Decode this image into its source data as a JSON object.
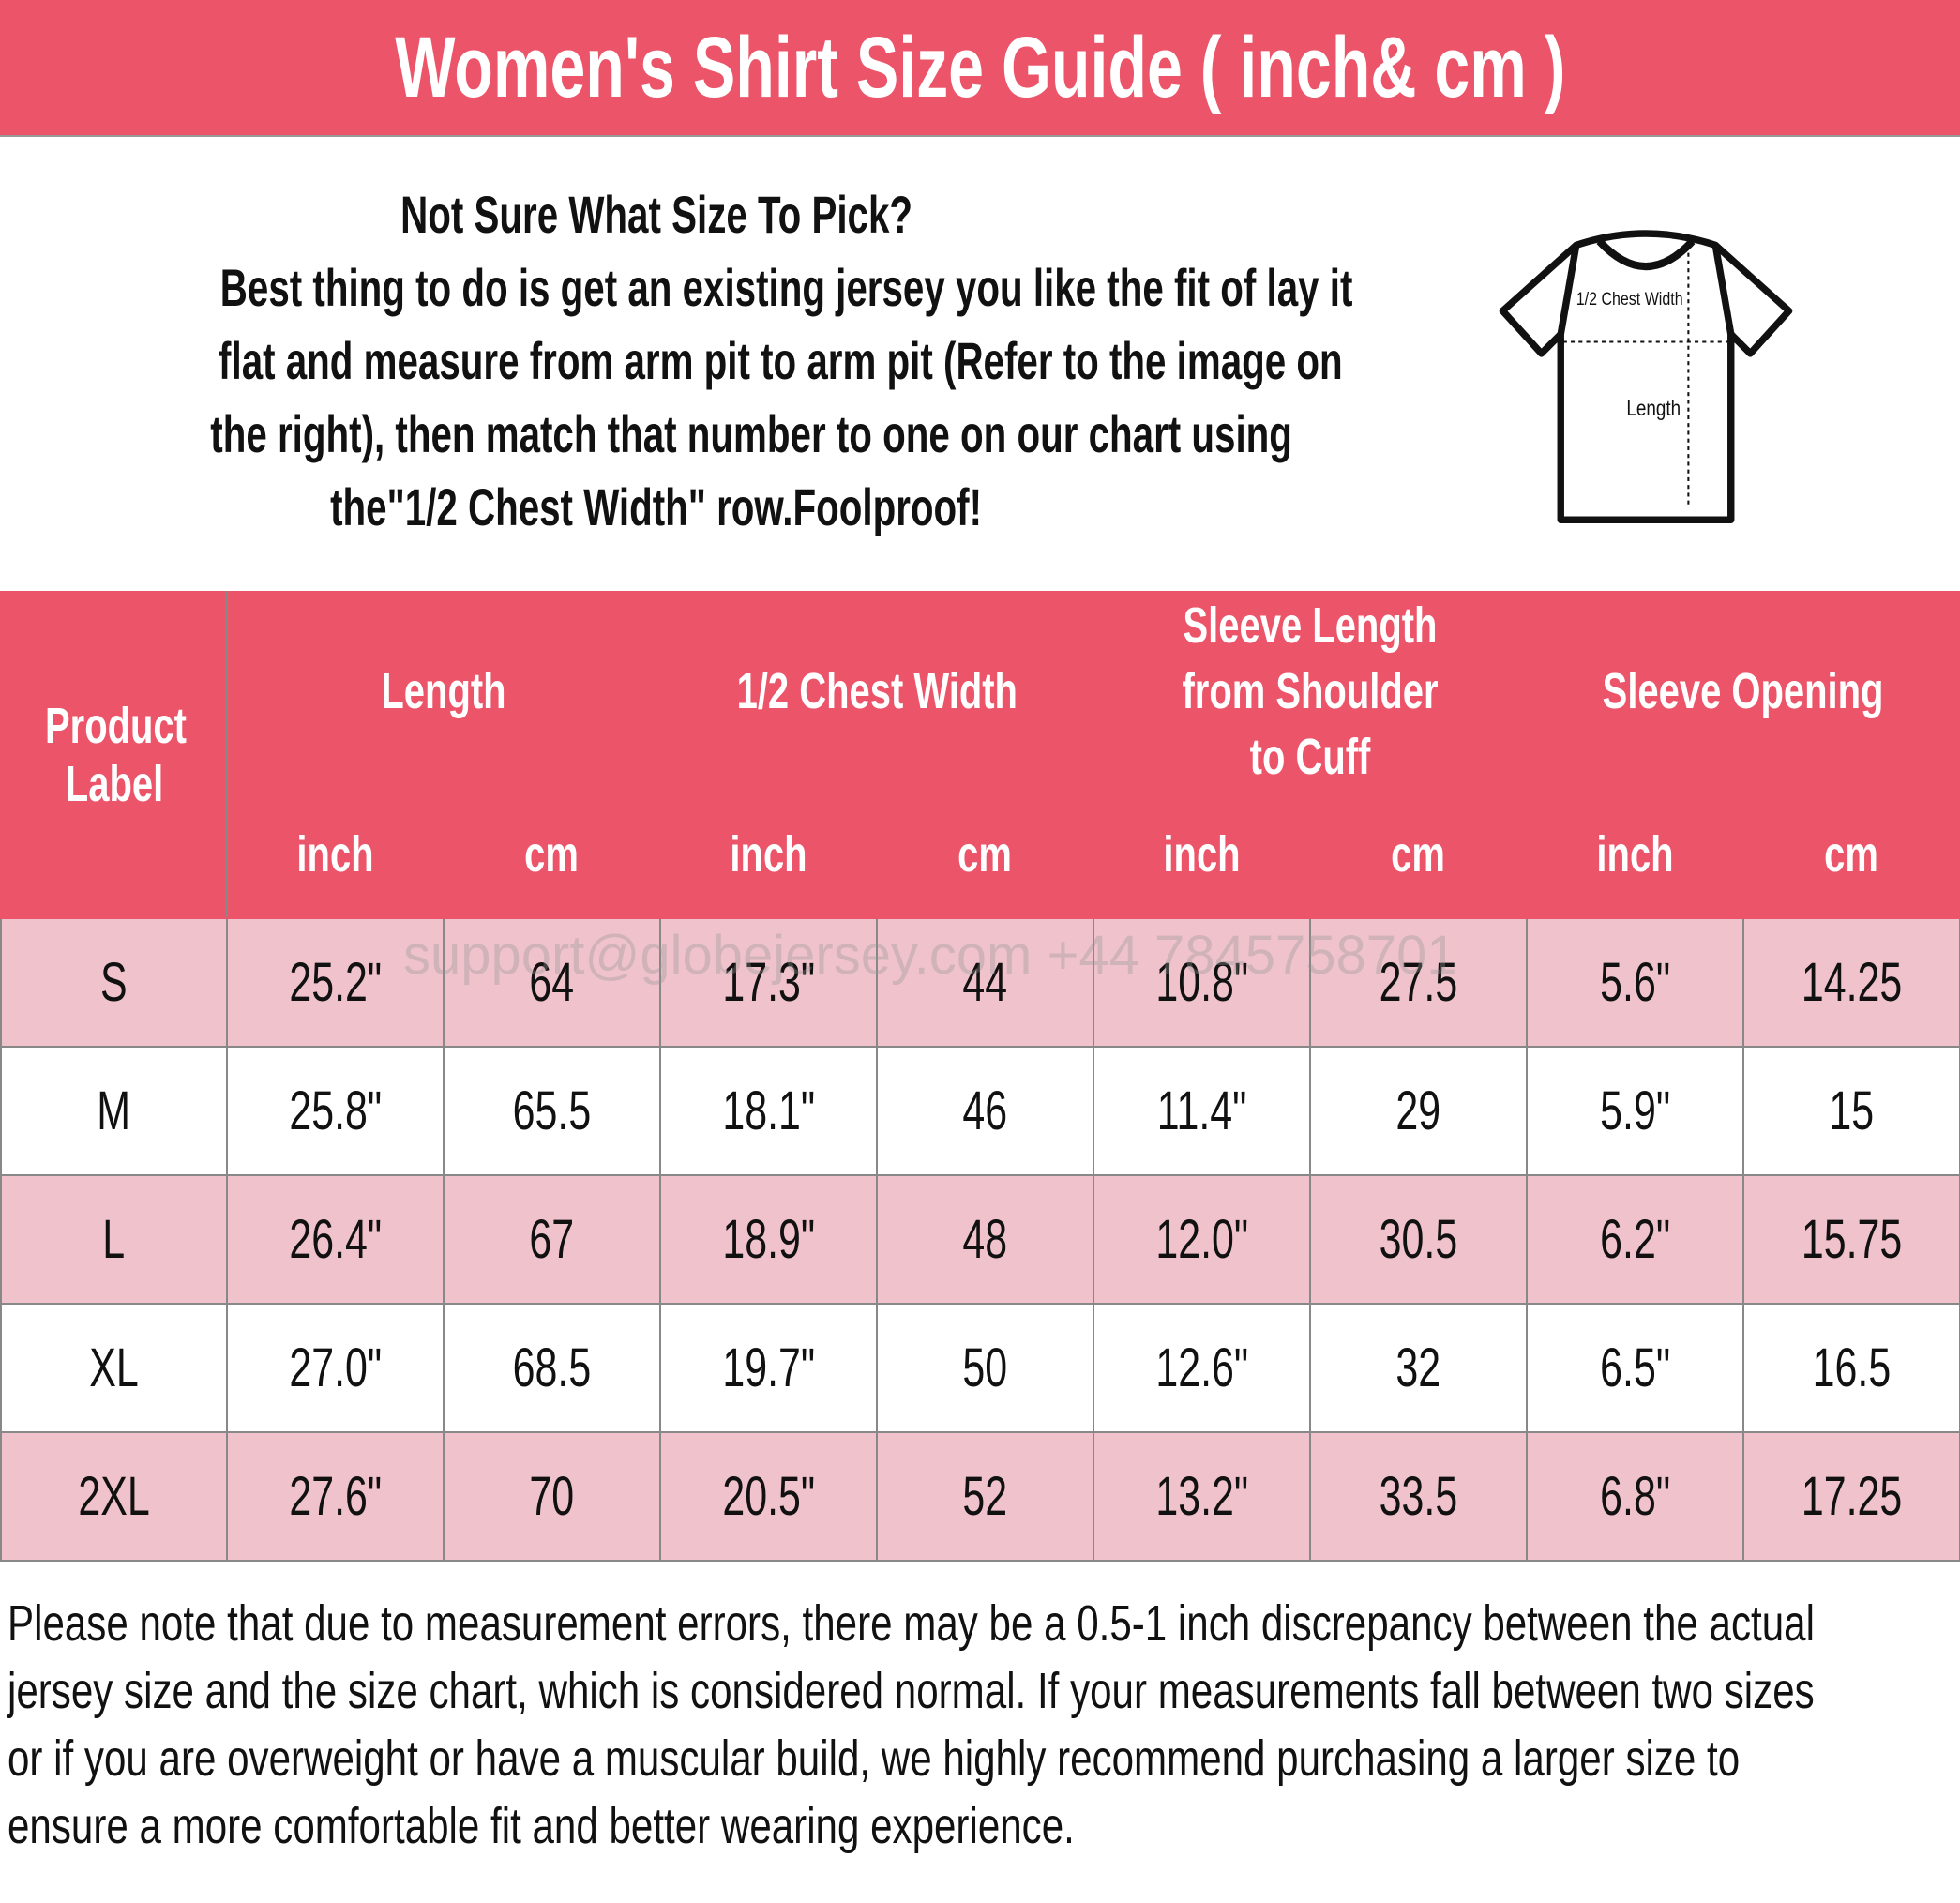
{
  "title": "Women's Shirt Size Guide ( inch& cm )",
  "intro": {
    "lines": [
      "Not Sure What Size To Pick?",
      "Best thing to do is get an existing jersey you like the fit of lay it",
      "flat and measure from arm pit to arm pit (Refer to the image on",
      "the right), then match that number to one on our chart using",
      "the\"1/2 Chest Width\" row.Foolproof!"
    ]
  },
  "diagram": {
    "chest_label": "1/2 Chest Width",
    "length_label": "Length"
  },
  "table": {
    "label_header": "Product Label",
    "groups": [
      "Length",
      "1/2 Chest Width",
      "Sleeve Length from Shoulder to Cuff",
      "Sleeve Opening"
    ],
    "units": [
      "inch",
      "cm"
    ],
    "rows": [
      [
        "S",
        "25.2\"",
        "64",
        "17.3\"",
        "44",
        "10.8\"",
        "27.5",
        "5.6\"",
        "14.25"
      ],
      [
        "M",
        "25.8\"",
        "65.5",
        "18.1\"",
        "46",
        "11.4\"",
        "29",
        "5.9\"",
        "15"
      ],
      [
        "L",
        "26.4\"",
        "67",
        "18.9\"",
        "48",
        "12.0\"",
        "30.5",
        "6.2\"",
        "15.75"
      ],
      [
        "XL",
        "27.0\"",
        "68.5",
        "19.7\"",
        "50",
        "12.6\"",
        "32",
        "6.5\"",
        "16.5"
      ],
      [
        "2XL",
        "27.6\"",
        "70",
        "20.5\"",
        "52",
        "13.2\"",
        "33.5",
        "6.8\"",
        "17.25"
      ]
    ]
  },
  "watermark": "support@globejersey.com   +44 7845758701",
  "note": [
    "Please note that due to measurement errors, there may be a 0.5-1 inch discrepancy between the actual",
    "jersey size and the size chart, which is considered normal. If your measurements fall between two sizes",
    "or if you are overweight or have a muscular build, we highly recommend purchasing a larger size to",
    "ensure a more comfortable fit and better wearing experience."
  ],
  "colors": {
    "header": "#EB5469",
    "row_alt": "#F0C3CC"
  }
}
